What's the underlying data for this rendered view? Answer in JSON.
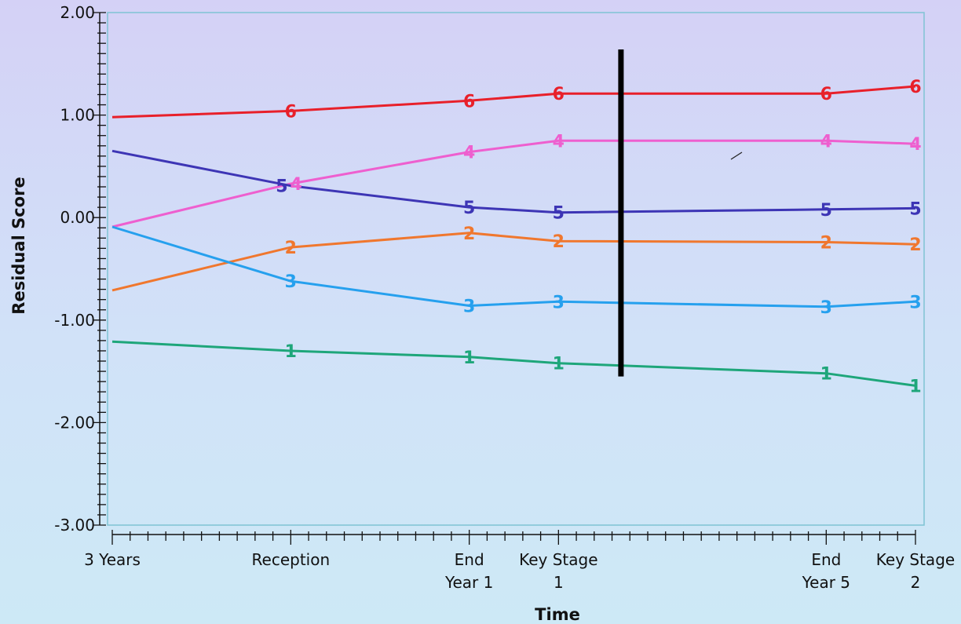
{
  "chart_data": {
    "type": "line",
    "xlabel": "Time",
    "ylabel": "Residual  Score",
    "ylim": [
      -3,
      2
    ],
    "y_ticks": [
      "2.00",
      "1.00",
      "0.00",
      "-1.00",
      "-2.00",
      "-3.00"
    ],
    "y_tick_values": [
      2,
      1,
      0,
      -1,
      -2,
      -3
    ],
    "x_categories": [
      {
        "lines": [
          "3 Years"
        ],
        "x": 0
      },
      {
        "lines": [
          "Reception"
        ],
        "x": 10
      },
      {
        "lines": [
          "End",
          "Year 1"
        ],
        "x": 20
      },
      {
        "lines": [
          "Key Stage",
          "1"
        ],
        "x": 25
      },
      {
        "lines": [
          "End",
          "Year 5"
        ],
        "x": 40
      },
      {
        "lines": [
          "Key Stage",
          "2"
        ],
        "x": 45
      }
    ],
    "x_range": [
      0,
      45
    ],
    "x_minor_tick_step": 1,
    "vertical_marker": {
      "x": 28.5,
      "y_top": 1.64,
      "y_bottom": -1.55
    },
    "series": [
      {
        "name": "6",
        "color": "#e8202a",
        "points": [
          [
            0,
            0.98
          ],
          [
            10,
            1.04
          ],
          [
            20,
            1.14
          ],
          [
            25,
            1.21
          ],
          [
            40,
            1.21
          ],
          [
            45,
            1.28
          ]
        ],
        "markers": [
          [
            10,
            1.04
          ],
          [
            20,
            1.14
          ],
          [
            25,
            1.21
          ],
          [
            40,
            1.21
          ],
          [
            45,
            1.28
          ]
        ]
      },
      {
        "name": "4",
        "color": "#ee5fcf",
        "points": [
          [
            0,
            -0.09
          ],
          [
            10,
            0.33
          ],
          [
            20,
            0.64
          ],
          [
            25,
            0.75
          ],
          [
            40,
            0.75
          ],
          [
            45,
            0.72
          ]
        ],
        "markers": [
          [
            10.3,
            0.33
          ],
          [
            20,
            0.64
          ],
          [
            25,
            0.75
          ],
          [
            40,
            0.75
          ],
          [
            45,
            0.72
          ]
        ]
      },
      {
        "name": "5",
        "color": "#3d35b5",
        "points": [
          [
            0,
            0.65
          ],
          [
            10,
            0.31
          ],
          [
            20,
            0.1
          ],
          [
            25,
            0.05
          ],
          [
            40,
            0.08
          ],
          [
            45,
            0.09
          ]
        ],
        "markers": [
          [
            9.5,
            0.31
          ],
          [
            20,
            0.1
          ],
          [
            25,
            0.05
          ],
          [
            40,
            0.08
          ],
          [
            45,
            0.09
          ]
        ]
      },
      {
        "name": "2",
        "color": "#f0772e",
        "points": [
          [
            0,
            -0.71
          ],
          [
            10,
            -0.29
          ],
          [
            20,
            -0.15
          ],
          [
            25,
            -0.23
          ],
          [
            40,
            -0.24
          ],
          [
            45,
            -0.26
          ]
        ],
        "markers": [
          [
            10,
            -0.29
          ],
          [
            20,
            -0.15
          ],
          [
            25,
            -0.23
          ],
          [
            40,
            -0.24
          ],
          [
            45,
            -0.26
          ]
        ]
      },
      {
        "name": "3",
        "color": "#26a0ee",
        "points": [
          [
            0,
            -0.09
          ],
          [
            10,
            -0.62
          ],
          [
            20,
            -0.86
          ],
          [
            25,
            -0.82
          ],
          [
            40,
            -0.87
          ],
          [
            45,
            -0.82
          ]
        ],
        "markers": [
          [
            10,
            -0.62
          ],
          [
            20,
            -0.86
          ],
          [
            25,
            -0.82
          ],
          [
            40,
            -0.87
          ],
          [
            45,
            -0.82
          ]
        ]
      },
      {
        "name": "1",
        "color": "#1ea67a",
        "points": [
          [
            0,
            -1.21
          ],
          [
            10,
            -1.3
          ],
          [
            20,
            -1.36
          ],
          [
            25,
            -1.42
          ],
          [
            40,
            -1.52
          ],
          [
            45,
            -1.64
          ]
        ],
        "markers": [
          [
            10,
            -1.3
          ],
          [
            20,
            -1.36
          ],
          [
            25,
            -1.42
          ],
          [
            40,
            -1.52
          ],
          [
            45,
            -1.64
          ]
        ]
      }
    ]
  }
}
